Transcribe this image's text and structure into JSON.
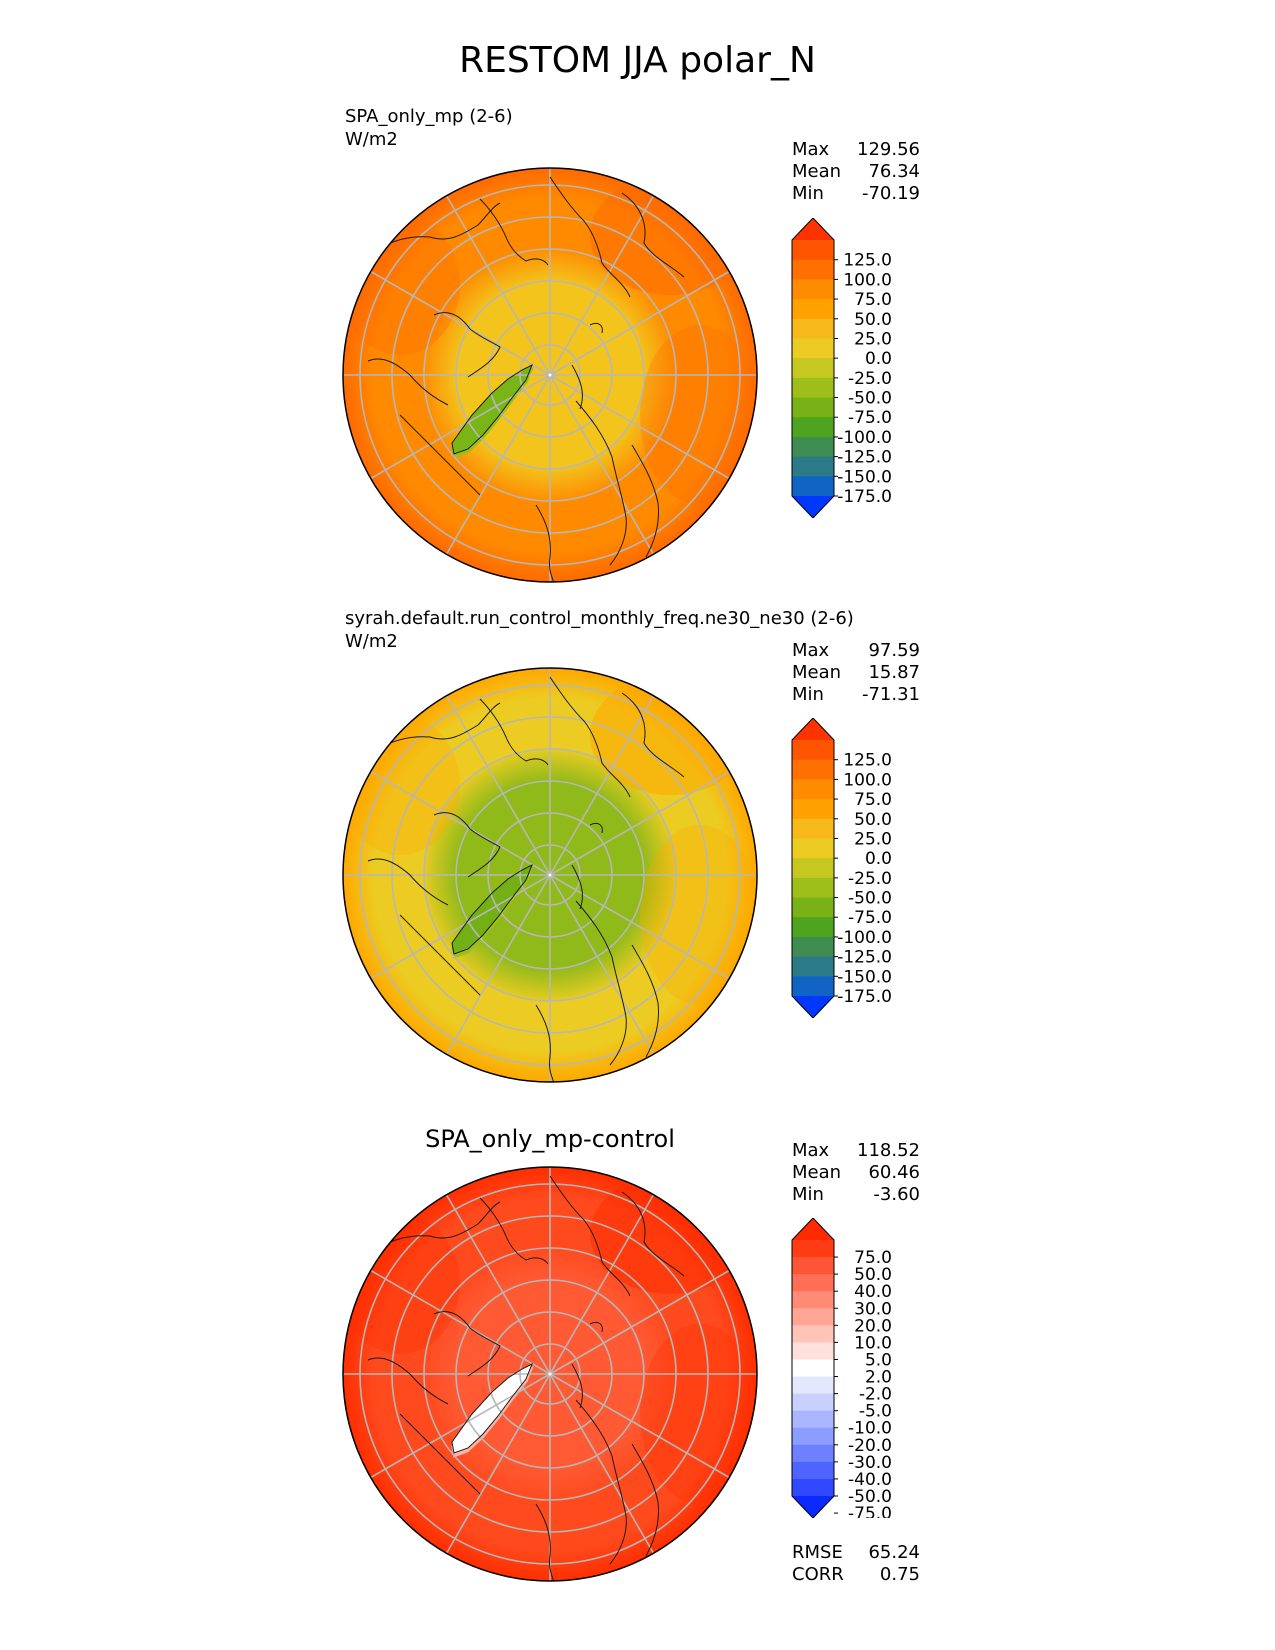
{
  "figure": {
    "title": "RESTOM JJA polar_N"
  },
  "colors": {
    "graticule": "#b7b7b7",
    "outline": "#000000",
    "coast": "#1a1a1a"
  },
  "chart_data": [
    {
      "type": "heatmap",
      "projection": "polar-north",
      "name": "SPA_only_mp (2-6)",
      "units": "W/m2",
      "stats": {
        "max": "129.56",
        "mean": "76.34",
        "min": "-70.19"
      },
      "colorbar": {
        "ticks": [
          "125.0",
          "100.0",
          "75.0",
          "50.0",
          "25.0",
          "0.0",
          "-25.0",
          "-50.0",
          "-75.0",
          "-100.0",
          "-125.0",
          "-150.0",
          "-175.0"
        ],
        "colors": [
          "#ff3300",
          "#ff5500",
          "#ff7000",
          "#ff8c00",
          "#ffa200",
          "#f7b81a",
          "#eccc22",
          "#c7c722",
          "#9ebe1a",
          "#78b216",
          "#4ea41e",
          "#3f8c50",
          "#2a7a8a",
          "#1064c4",
          "#0038ff"
        ]
      },
      "field": {
        "base": "#ff8a00",
        "outer": "#ff6a00",
        "polar": "#f2c41c",
        "greenland": "#7ab516",
        "greenland_edge": "#9bbe1a"
      }
    },
    {
      "type": "heatmap",
      "projection": "polar-north",
      "name": "syrah.default.run_control_monthly_freq.ne30_ne30 (2-6)",
      "units": "W/m2",
      "stats": {
        "max": "97.59",
        "mean": "15.87",
        "min": "-71.31"
      },
      "colorbar": {
        "ticks": [
          "125.0",
          "100.0",
          "75.0",
          "50.0",
          "25.0",
          "0.0",
          "-25.0",
          "-50.0",
          "-75.0",
          "-100.0",
          "-125.0",
          "-150.0",
          "-175.0"
        ],
        "colors": [
          "#ff3300",
          "#ff5500",
          "#ff7000",
          "#ff8c00",
          "#ffa200",
          "#f7b81a",
          "#eccc22",
          "#c7c722",
          "#9ebe1a",
          "#78b216",
          "#4ea41e",
          "#3f8c50",
          "#2a7a8a",
          "#1064c4",
          "#0038ff"
        ]
      },
      "field": {
        "base": "#eccc22",
        "outer": "#ffa800",
        "polar": "#8fba1a",
        "greenland": "#72b016",
        "greenland_edge": "#9ebe1a"
      }
    },
    {
      "type": "heatmap",
      "projection": "polar-north",
      "name": "SPA_only_mp-control",
      "units": "",
      "stats": {
        "max": "118.52",
        "mean": "60.46",
        "min": "-3.60",
        "rmse": "65.24",
        "corr": "0.75"
      },
      "metric_labels": {
        "max": "Max",
        "mean": "Mean",
        "min": "Min",
        "rmse": "RMSE",
        "corr": "CORR"
      },
      "colorbar": {
        "ticks": [
          "75.0",
          "50.0",
          "40.0",
          "30.0",
          "20.0",
          "10.0",
          "5.0",
          "2.0",
          "-2.0",
          "-5.0",
          "-10.0",
          "-20.0",
          "-30.0",
          "-40.0",
          "-50.0",
          "-75.0"
        ],
        "colors": [
          "#ff2a00",
          "#ff3c14",
          "#ff5535",
          "#ff6e55",
          "#ff8a76",
          "#ffa596",
          "#ffc3b8",
          "#ffe0da",
          "#ffffff",
          "#e4e8ff",
          "#c8d0ff",
          "#aab6ff",
          "#8c9cff",
          "#6e80ff",
          "#4f64ff",
          "#3048ff",
          "#0a2aff"
        ]
      },
      "field": {
        "base": "#ff4a1e",
        "outer": "#ff2e00",
        "polar": "#ff5a34",
        "greenland": "#ffffff",
        "greenland_edge": "#ffb4a4"
      }
    }
  ],
  "labels": {
    "max": "Max",
    "mean": "Mean",
    "min": "Min"
  }
}
